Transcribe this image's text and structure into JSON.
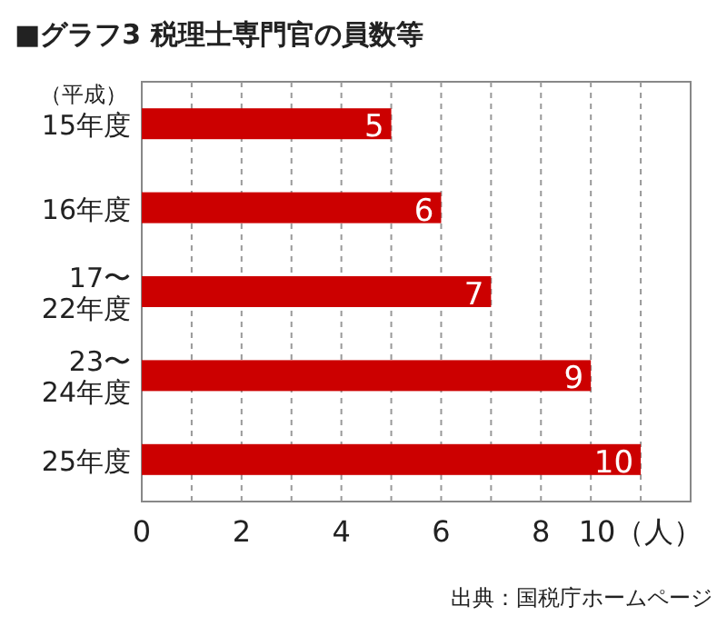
{
  "chart_data": {
    "type": "bar",
    "orientation": "horizontal",
    "title": "■グラフ3 税理士専門官の員数等",
    "categories": [
      "15年度",
      "16年度",
      "17〜\n22年度",
      "23〜\n24年度",
      "25年度"
    ],
    "values": [
      5,
      6,
      7,
      9,
      10
    ],
    "color": "#cc0000",
    "data_labels": true,
    "xlim": [
      0,
      11
    ],
    "xticks": [
      0,
      {
        "value": 1,
        "label": null
      },
      2,
      {
        "value": 3,
        "label": null
      },
      4,
      {
        "value": 5,
        "label": null
      },
      6,
      {
        "value": 7,
        "label": null
      },
      8,
      {
        "value": 9,
        "label": null
      },
      {
        "value": 10,
        "label": "10（人）"
      }
    ],
    "grid": "x",
    "annotations": [
      "（平成）",
      "出典：国税庁ホームページ"
    ]
  }
}
